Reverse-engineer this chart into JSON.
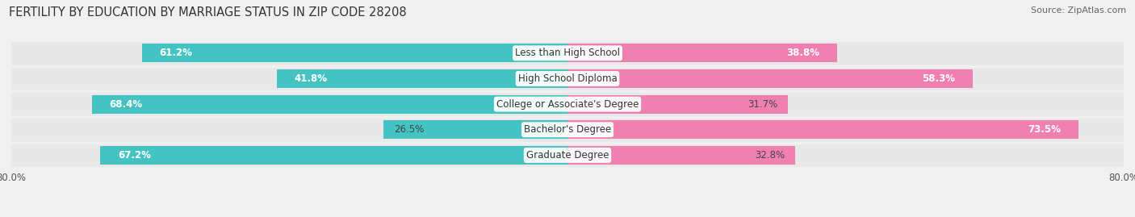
{
  "title": "FERTILITY BY EDUCATION BY MARRIAGE STATUS IN ZIP CODE 28208",
  "source": "Source: ZipAtlas.com",
  "categories": [
    "Less than High School",
    "High School Diploma",
    "College or Associate's Degree",
    "Bachelor's Degree",
    "Graduate Degree"
  ],
  "married": [
    61.2,
    41.8,
    68.4,
    26.5,
    67.2
  ],
  "unmarried": [
    38.8,
    58.3,
    31.7,
    73.5,
    32.8
  ],
  "married_color": "#45c3c3",
  "unmarried_color": "#f080b0",
  "bg_color": "#f0f0f0",
  "row_bg_color": "#e8e8e8",
  "xlim_left": -80.0,
  "xlim_right": 80.0,
  "title_fontsize": 10.5,
  "label_fontsize": 8.5,
  "value_fontsize": 8.5,
  "tick_fontsize": 8.5,
  "source_fontsize": 8
}
